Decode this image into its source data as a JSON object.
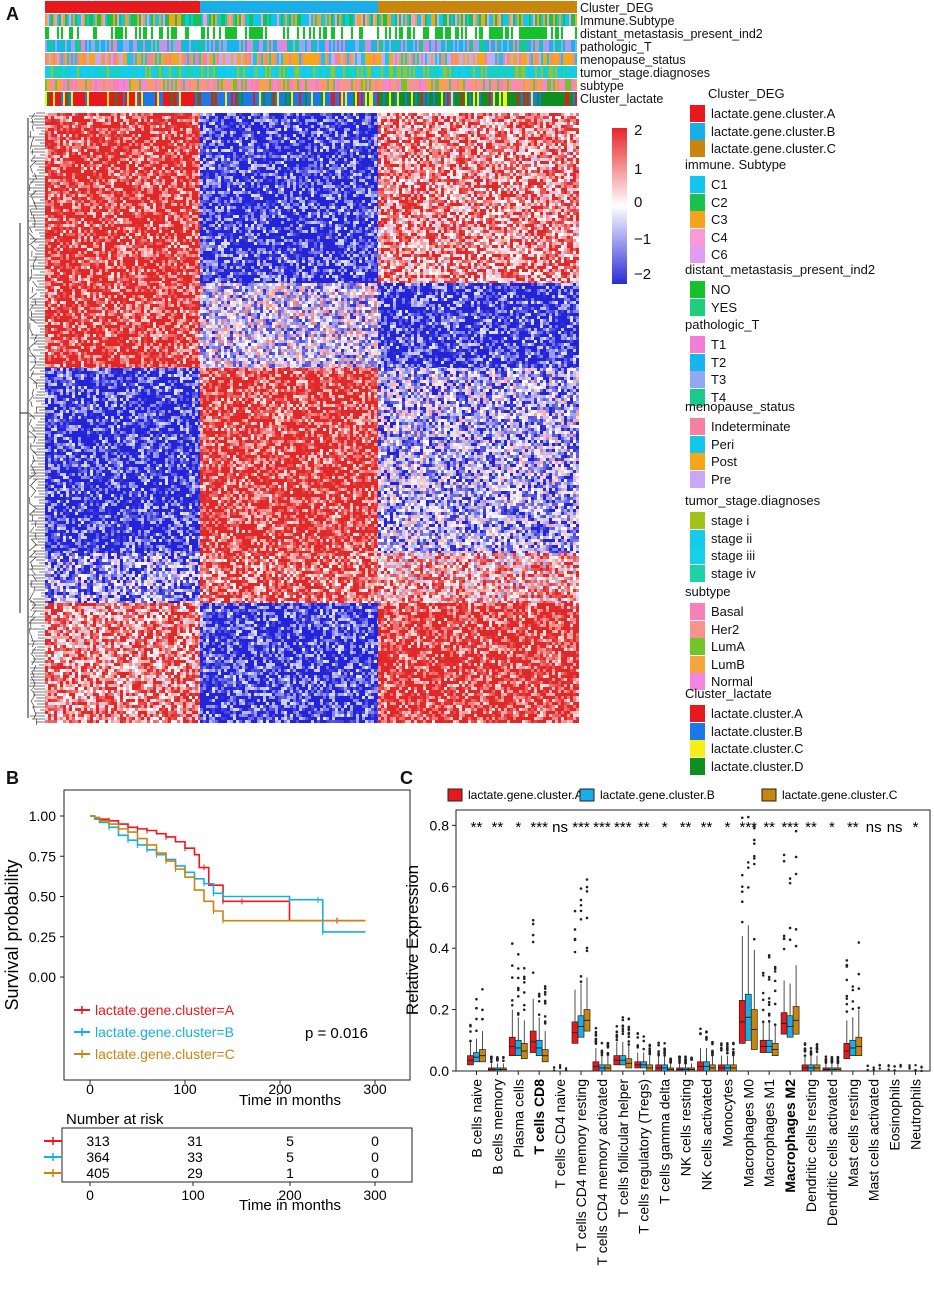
{
  "figure": {
    "panel_a": "A",
    "panel_b": "B",
    "panel_c": "C"
  },
  "annotation_tracks": [
    {
      "label": "Cluster_DEG"
    },
    {
      "label": "Immune.Subtype"
    },
    {
      "label": "distant_metastasis_present_ind2"
    },
    {
      "label": "pathologic_T"
    },
    {
      "label": "menopause_status"
    },
    {
      "label": "tumor_stage.diagnoses"
    },
    {
      "label": "subtype"
    },
    {
      "label": "Cluster_lactate"
    }
  ],
  "colorbar": {
    "ticks": [
      "2",
      "1",
      "0",
      "−1",
      "−2"
    ],
    "colors": {
      "high": "#e8242a",
      "mid": "#ffffff",
      "low": "#2b2bd6"
    }
  },
  "legend_groups": [
    {
      "title": "Cluster_DEG",
      "items": [
        {
          "label": "lactate.gene.cluster.A",
          "color": "#e8191c"
        },
        {
          "label": "lactate.gene.cluster.B",
          "color": "#1aaee8"
        },
        {
          "label": "lactate.gene.cluster.C",
          "color": "#c8860f"
        }
      ]
    },
    {
      "title": "immune. Subtype",
      "items": [
        {
          "label": "C1",
          "color": "#10c6ee"
        },
        {
          "label": "C2",
          "color": "#19c24e"
        },
        {
          "label": "C3",
          "color": "#f4a41c"
        },
        {
          "label": "C4",
          "color": "#f79ad6"
        },
        {
          "label": "C6",
          "color": "#e19df2"
        }
      ]
    },
    {
      "title": "distant_metastasis_present_ind2",
      "items": [
        {
          "label": "NO",
          "color": "#16c22c"
        },
        {
          "label": "YES",
          "color": "#1cd07d"
        }
      ]
    },
    {
      "title": "pathologic_T",
      "items": [
        {
          "label": "T1",
          "color": "#f17fd8"
        },
        {
          "label": "T2",
          "color": "#18b4ec"
        },
        {
          "label": "T3",
          "color": "#8fa9f2"
        },
        {
          "label": "T4",
          "color": "#1bc98f"
        }
      ]
    },
    {
      "title": "menopause_status",
      "items": [
        {
          "label": "Indeterminate",
          "color": "#f6809f"
        },
        {
          "label": "Peri",
          "color": "#14c6ea"
        },
        {
          "label": "Post",
          "color": "#f4a71b"
        },
        {
          "label": "Pre",
          "color": "#c8a7f5"
        }
      ]
    },
    {
      "title": "tumor_stage.diagnoses",
      "items": [
        {
          "label": "stage i",
          "color": "#a2c41a"
        },
        {
          "label": "stage ii",
          "color": "#14cbe9"
        },
        {
          "label": "stage iii",
          "color": "#18cfe8"
        },
        {
          "label": "stage iv",
          "color": "#1bd3a6"
        }
      ]
    },
    {
      "title": "subtype",
      "items": [
        {
          "label": "Basal",
          "color": "#f680b9"
        },
        {
          "label": "Her2",
          "color": "#f7928d"
        },
        {
          "label": "LumA",
          "color": "#71c52b"
        },
        {
          "label": "LumB",
          "color": "#f6a43e"
        },
        {
          "label": "Normal",
          "color": "#f384e0"
        }
      ]
    },
    {
      "title": "Cluster_lactate",
      "items": [
        {
          "label": "lactate.cluster.A",
          "color": "#e8191c"
        },
        {
          "label": "lactate.cluster.B",
          "color": "#1a78e8"
        },
        {
          "label": "lactate.cluster.C",
          "color": "#f5ef16"
        },
        {
          "label": "lactate.cluster.D",
          "color": "#0f8f22"
        }
      ]
    }
  ],
  "chart_data": [
    {
      "id": "survival",
      "type": "line",
      "ylabel": "Survival probability",
      "xlabel": "Time in months",
      "xlim": [
        0,
        300
      ],
      "ylim": [
        0,
        1
      ],
      "xticks": [
        "0",
        "100",
        "200",
        "300"
      ],
      "yticks": [
        "1.00",
        "0.75",
        "0.50",
        "0.25",
        "0.00"
      ],
      "pvalue": "p = 0.016",
      "series": [
        {
          "name": "lactate.gene.cluster=A",
          "color": "#f0161c",
          "points": [
            [
              0,
              1
            ],
            [
              5,
              0.99
            ],
            [
              10,
              0.98
            ],
            [
              20,
              0.97
            ],
            [
              30,
              0.95
            ],
            [
              40,
              0.93
            ],
            [
              50,
              0.92
            ],
            [
              60,
              0.91
            ],
            [
              70,
              0.89
            ],
            [
              80,
              0.87
            ],
            [
              90,
              0.84
            ],
            [
              100,
              0.8
            ],
            [
              110,
              0.76
            ],
            [
              115,
              0.68
            ],
            [
              120,
              0.68
            ],
            [
              125,
              0.57
            ],
            [
              130,
              0.57
            ],
            [
              140,
              0.47
            ],
            [
              160,
              0.47
            ],
            [
              200,
              0.47
            ],
            [
              210,
              0.35
            ],
            [
              260,
              0.35
            ],
            [
              290,
              0.35
            ]
          ]
        },
        {
          "name": "lactate.gene.cluster=B",
          "color": "#16aee6",
          "points": [
            [
              0,
              1
            ],
            [
              5,
              0.98
            ],
            [
              10,
              0.96
            ],
            [
              20,
              0.93
            ],
            [
              30,
              0.88
            ],
            [
              40,
              0.85
            ],
            [
              50,
              0.82
            ],
            [
              60,
              0.79
            ],
            [
              70,
              0.76
            ],
            [
              80,
              0.73
            ],
            [
              90,
              0.69
            ],
            [
              100,
              0.65
            ],
            [
              110,
              0.61
            ],
            [
              120,
              0.58
            ],
            [
              130,
              0.52
            ],
            [
              140,
              0.5
            ],
            [
              200,
              0.5
            ],
            [
              210,
              0.48
            ],
            [
              240,
              0.48
            ],
            [
              245,
              0.28
            ],
            [
              290,
              0.28
            ]
          ]
        },
        {
          "name": "lactate.gene.cluster=C",
          "color": "#c8860f",
          "points": [
            [
              0,
              1
            ],
            [
              5,
              0.99
            ],
            [
              10,
              0.97
            ],
            [
              20,
              0.95
            ],
            [
              30,
              0.92
            ],
            [
              40,
              0.9
            ],
            [
              50,
              0.86
            ],
            [
              60,
              0.82
            ],
            [
              70,
              0.77
            ],
            [
              80,
              0.72
            ],
            [
              90,
              0.67
            ],
            [
              100,
              0.62
            ],
            [
              110,
              0.54
            ],
            [
              120,
              0.47
            ],
            [
              130,
              0.41
            ],
            [
              140,
              0.35
            ],
            [
              200,
              0.35
            ],
            [
              230,
              0.35
            ],
            [
              290,
              0.35
            ]
          ]
        }
      ],
      "risk_table": {
        "title": "Number at risk",
        "rows": [
          {
            "color": "#f0161c",
            "values": [
              "313",
              "31",
              "5",
              "0"
            ]
          },
          {
            "color": "#16aee6",
            "values": [
              "364",
              "33",
              "5",
              "0"
            ]
          },
          {
            "color": "#c8860f",
            "values": [
              "405",
              "29",
              "1",
              "0"
            ]
          }
        ]
      }
    },
    {
      "id": "immune_boxplot",
      "type": "box",
      "ylabel": "Relative Expression",
      "ylim": [
        0,
        0.85
      ],
      "yticks": [
        "0.0",
        "0.2",
        "0.4",
        "0.6",
        "0.8"
      ],
      "legend": [
        {
          "label": "lactate.gene.cluster.A",
          "color": "#e8191c"
        },
        {
          "label": "lactate.gene.cluster.B",
          "color": "#1aaee8"
        },
        {
          "label": "lactate.gene.cluster.C",
          "color": "#c8860f"
        }
      ],
      "categories": [
        {
          "name": "B cells naive",
          "sig": "**",
          "bold": false,
          "boxes": [
            [
              0.02,
              0.05
            ],
            [
              0.03,
              0.06
            ],
            [
              0.03,
              0.07
            ]
          ]
        },
        {
          "name": "B cells memory",
          "sig": "**",
          "bold": false,
          "boxes": [
            [
              0.0,
              0.01
            ],
            [
              0.0,
              0.01
            ],
            [
              0.0,
              0.01
            ]
          ]
        },
        {
          "name": "Plasma cells",
          "sig": "*",
          "bold": false,
          "boxes": [
            [
              0.05,
              0.11
            ],
            [
              0.05,
              0.1
            ],
            [
              0.04,
              0.09
            ]
          ]
        },
        {
          "name": "T cells CD8",
          "sig": "***",
          "bold": true,
          "boxes": [
            [
              0.06,
              0.13
            ],
            [
              0.05,
              0.1
            ],
            [
              0.03,
              0.07
            ]
          ]
        },
        {
          "name": "T cells CD4 naive",
          "sig": "ns",
          "bold": false,
          "boxes": [
            [
              0.0,
              0.0
            ],
            [
              0.0,
              0.0
            ],
            [
              0.0,
              0.0
            ]
          ]
        },
        {
          "name": "T cells CD4 memory resting",
          "sig": "***",
          "bold": false,
          "boxes": [
            [
              0.09,
              0.16
            ],
            [
              0.11,
              0.18
            ],
            [
              0.13,
              0.2
            ]
          ]
        },
        {
          "name": "T cells CD4 memory activated",
          "sig": "***",
          "bold": false,
          "boxes": [
            [
              0.0,
              0.03
            ],
            [
              0.0,
              0.02
            ],
            [
              0.0,
              0.02
            ]
          ]
        },
        {
          "name": "T cells follicular helper",
          "sig": "***",
          "bold": false,
          "boxes": [
            [
              0.02,
              0.05
            ],
            [
              0.02,
              0.05
            ],
            [
              0.01,
              0.04
            ]
          ]
        },
        {
          "name": "T cells regulatory (Tregs)",
          "sig": "**",
          "bold": false,
          "boxes": [
            [
              0.01,
              0.03
            ],
            [
              0.01,
              0.03
            ],
            [
              0.0,
              0.02
            ]
          ]
        },
        {
          "name": "T cells gamma delta",
          "sig": "*",
          "bold": false,
          "boxes": [
            [
              0.0,
              0.02
            ],
            [
              0.0,
              0.02
            ],
            [
              0.0,
              0.01
            ]
          ]
        },
        {
          "name": "NK cells resting",
          "sig": "**",
          "bold": false,
          "boxes": [
            [
              0.0,
              0.01
            ],
            [
              0.0,
              0.01
            ],
            [
              0.0,
              0.01
            ]
          ]
        },
        {
          "name": "NK cells activated",
          "sig": "**",
          "bold": false,
          "boxes": [
            [
              0.0,
              0.03
            ],
            [
              0.0,
              0.03
            ],
            [
              0.0,
              0.02
            ]
          ]
        },
        {
          "name": "Monocytes",
          "sig": "*",
          "bold": false,
          "boxes": [
            [
              0.0,
              0.02
            ],
            [
              0.0,
              0.02
            ],
            [
              0.0,
              0.02
            ]
          ]
        },
        {
          "name": "Macrophages M0",
          "sig": "***",
          "bold": false,
          "boxes": [
            [
              0.09,
              0.23
            ],
            [
              0.1,
              0.25
            ],
            [
              0.07,
              0.2
            ]
          ]
        },
        {
          "name": "Macrophages M1",
          "sig": "**",
          "bold": false,
          "boxes": [
            [
              0.06,
              0.1
            ],
            [
              0.06,
              0.1
            ],
            [
              0.05,
              0.09
            ]
          ]
        },
        {
          "name": "Macrophages M2",
          "sig": "***",
          "bold": true,
          "boxes": [
            [
              0.12,
              0.19
            ],
            [
              0.11,
              0.18
            ],
            [
              0.12,
              0.21
            ]
          ]
        },
        {
          "name": "Dendritic cells resting",
          "sig": "**",
          "bold": false,
          "boxes": [
            [
              0.0,
              0.02
            ],
            [
              0.0,
              0.02
            ],
            [
              0.0,
              0.02
            ]
          ]
        },
        {
          "name": "Dendritic cells activated",
          "sig": "*",
          "bold": false,
          "boxes": [
            [
              0.0,
              0.01
            ],
            [
              0.0,
              0.01
            ],
            [
              0.0,
              0.01
            ]
          ]
        },
        {
          "name": "Mast cells resting",
          "sig": "**",
          "bold": false,
          "boxes": [
            [
              0.04,
              0.09
            ],
            [
              0.05,
              0.1
            ],
            [
              0.05,
              0.11
            ]
          ]
        },
        {
          "name": "Mast cells activated",
          "sig": "ns",
          "bold": false,
          "boxes": [
            [
              0.0,
              0.0
            ],
            [
              0.0,
              0.0
            ],
            [
              0.0,
              0.0
            ]
          ]
        },
        {
          "name": "Eosinophils",
          "sig": "ns",
          "bold": false,
          "boxes": [
            [
              0.0,
              0.0
            ],
            [
              0.0,
              0.0
            ],
            [
              0.0,
              0.0
            ]
          ]
        },
        {
          "name": "Neutrophils",
          "sig": "*",
          "bold": false,
          "boxes": [
            [
              0.0,
              0.0
            ],
            [
              0.0,
              0.0
            ],
            [
              0.0,
              0.0
            ]
          ]
        }
      ]
    }
  ]
}
